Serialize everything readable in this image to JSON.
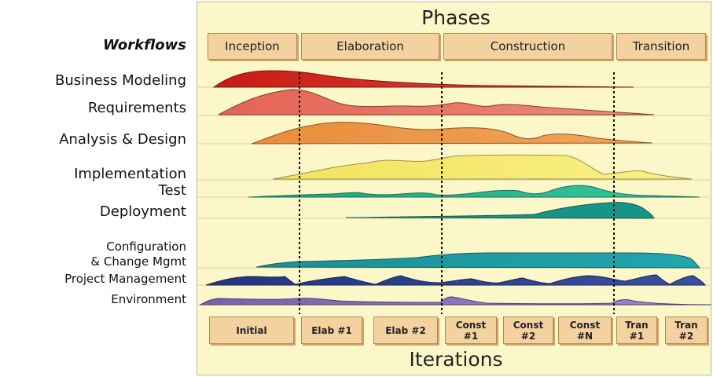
{
  "phases_title": "Phases",
  "iterations_title": "Iterations",
  "workflows_title": "Workflows",
  "phases": [
    {
      "label": "Inception"
    },
    {
      "label": "Elaboration"
    },
    {
      "label": "Construction"
    },
    {
      "label": "Transition"
    }
  ],
  "workflows": [
    {
      "label": "Business Modeling",
      "color": "#d8251c"
    },
    {
      "label": "Requirements",
      "color": "#e86a5c"
    },
    {
      "label": "Analysis & Design",
      "color": "#ea9540"
    },
    {
      "label": "Implementation",
      "color": "#f4ec6a"
    },
    {
      "label": "Test",
      "color": "#26b88a"
    },
    {
      "label": "Deployment",
      "color": "#1a9c8c"
    },
    {
      "label": "Configuration\n& Change Mgmt",
      "color": "#1d9aa0"
    },
    {
      "label": "Project Management",
      "color": "#2d3f8c"
    },
    {
      "label": "Environment",
      "color": "#7f6aae"
    }
  ],
  "iterations": [
    {
      "label": "Initial"
    },
    {
      "label": "Elab #1"
    },
    {
      "label": "Elab #2"
    },
    {
      "label": "Const\n#1"
    },
    {
      "label": "Const\n#2"
    },
    {
      "label": "Const\n#N"
    },
    {
      "label": "Tran\n#1"
    },
    {
      "label": "Tran\n#2"
    }
  ]
}
